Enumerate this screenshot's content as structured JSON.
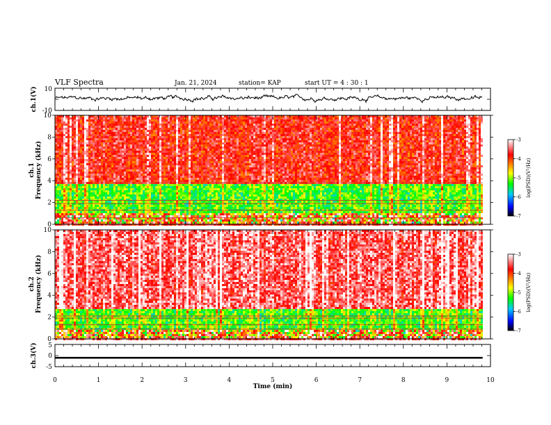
{
  "header": {
    "title": "VLF Spectra",
    "date": "Jan. 21, 2024",
    "station": "station= KAP",
    "start": "start  UT =   4 : 30 : 1"
  },
  "chart_data": [
    {
      "name": "ch1-waveform",
      "type": "line",
      "ylabel": "ch.1(V)",
      "ylim": [
        -10,
        10
      ],
      "y_ticks": [
        "10",
        "-10"
      ],
      "xlim": [
        0,
        10
      ],
      "trace_color": "#000000",
      "mean_value": 1.0,
      "amplitude": 3.5
    },
    {
      "name": "ch1-spectrogram",
      "type": "heatmap",
      "ylabel_top": "ch.1",
      "ylabel": "Frequency (kHz)",
      "ylim": [
        0,
        10
      ],
      "y_ticks": [
        "0",
        "2",
        "4",
        "6",
        "8",
        "10"
      ],
      "xlim": [
        0,
        10
      ],
      "data_end_min": 9.82,
      "bands": [
        {
          "from": 0,
          "to": 1.0,
          "level": "mixed"
        },
        {
          "from": 1.0,
          "to": 3.7,
          "level": -5.2
        },
        {
          "from": 3.7,
          "to": 10,
          "level": -3.8
        }
      ],
      "lines_khz": [
        3.8,
        2.2,
        1.9,
        1.3,
        0.6
      ],
      "colorbar": {
        "label": "log(PSD)(V²/Hz)",
        "min": -7,
        "max": -3,
        "ticks": [
          "-3",
          "-4",
          "-5",
          "-6",
          "-7"
        ]
      }
    },
    {
      "name": "ch2-spectrogram",
      "type": "heatmap",
      "ylabel_top": "ch.2",
      "ylabel": "Frequency (kHz)",
      "ylim": [
        0,
        10
      ],
      "y_ticks": [
        "0",
        "2",
        "4",
        "6",
        "8",
        "10"
      ],
      "xlim": [
        0,
        10
      ],
      "data_end_min": 9.82,
      "bands": [
        {
          "from": 0,
          "to": 0.8,
          "level": "mixed"
        },
        {
          "from": 0.8,
          "to": 2.8,
          "level": -5.2
        },
        {
          "from": 2.8,
          "to": 10,
          "level": -3.5
        }
      ],
      "lines_khz": [
        2.1,
        1.9,
        1.3,
        0.9
      ],
      "colorbar": {
        "label": "log(PSD)(V²/Hz)",
        "min": -7,
        "max": -3,
        "ticks": [
          "-3",
          "-4",
          "-5",
          "-6",
          "-7"
        ]
      }
    },
    {
      "name": "ch3-waveform",
      "type": "line",
      "ylabel": "ch.3(V)",
      "ylim": [
        -5,
        5
      ],
      "y_ticks": [
        "5",
        "0",
        "-5"
      ],
      "xlim": [
        0,
        10
      ],
      "trace_color": "#000000",
      "mean_value": -1.0,
      "band_thickness_v": 0.8
    }
  ],
  "x_axis": {
    "label": "Time (min)",
    "ticks": [
      "0",
      "1",
      "2",
      "3",
      "4",
      "5",
      "6",
      "7",
      "8",
      "9",
      "10"
    ]
  },
  "colors": {
    "background": "#ffffff",
    "axis": "#000000",
    "colormap": [
      "#000000",
      "#0000ff",
      "#00c8ff",
      "#00ff00",
      "#ffff00",
      "#ff8000",
      "#ff0000",
      "#ffffff"
    ]
  }
}
